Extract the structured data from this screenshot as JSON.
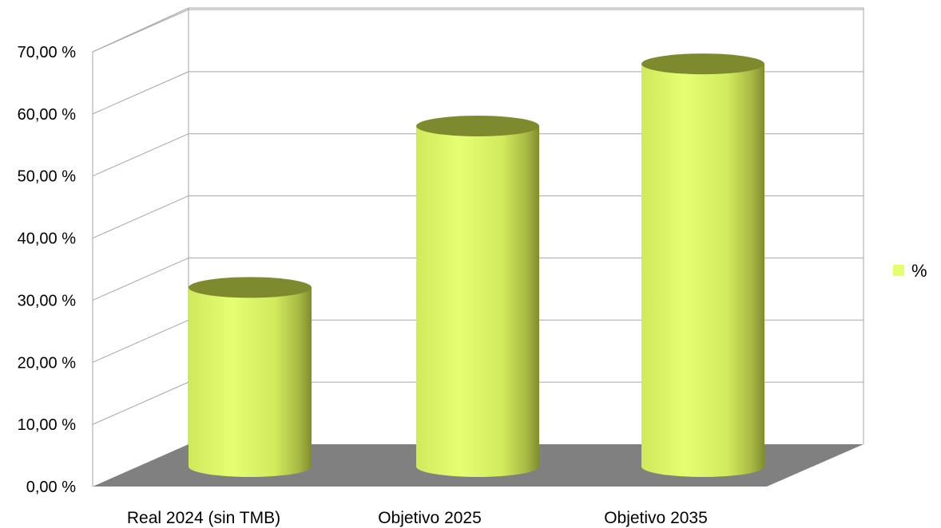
{
  "chart_data": {
    "type": "bar",
    "style": "3d-cylinder",
    "categories": [
      "Real 2024 (sin TMB)",
      "Objetivo 2025",
      "Objetivo 2035"
    ],
    "series": [
      {
        "name": "%",
        "values": [
          30,
          56,
          66
        ],
        "color": "#e4ff6e"
      }
    ],
    "ylim": [
      0,
      70
    ],
    "y_ticks": [
      "0,00 %",
      "10,00 %",
      "20,00 %",
      "30,00 %",
      "40,00 %",
      "50,00 %",
      "60,00 %",
      "70,00 %"
    ],
    "grid": true,
    "legend_position": "right",
    "floor_color": "#808080"
  }
}
